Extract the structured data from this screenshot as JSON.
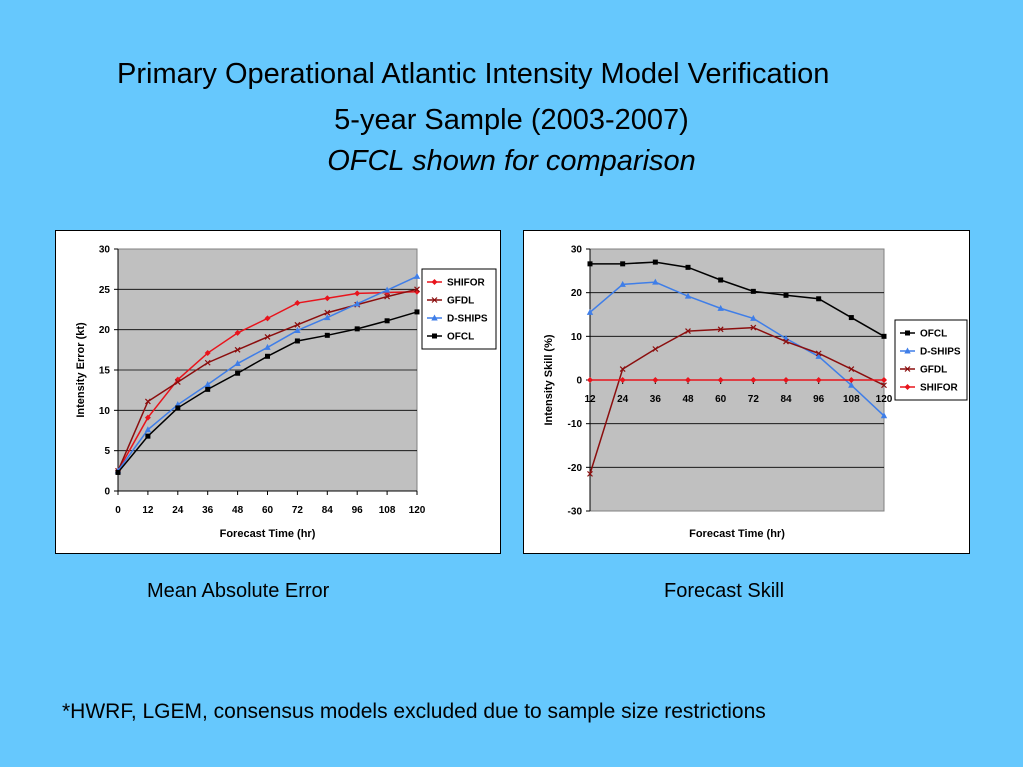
{
  "slide": {
    "title_line1": "Primary Operational Atlantic Intensity Model Verification",
    "title_line2": "5-year Sample (2003-2007)",
    "title_line3": "OFCL shown for comparison",
    "caption_left": "Mean Absolute Error",
    "caption_right": "Forecast Skill",
    "footnote": "*HWRF, LGEM, consensus models excluded due to sample size restrictions"
  },
  "chart_data": [
    {
      "type": "line",
      "xlabel": "Forecast Time (hr)",
      "ylabel": "Intensity Error (kt)",
      "x": [
        0,
        12,
        24,
        36,
        48,
        60,
        72,
        84,
        96,
        108,
        120
      ],
      "ylim": [
        0,
        30
      ],
      "yticks": [
        0,
        5,
        10,
        15,
        20,
        25,
        30
      ],
      "grid": true,
      "plot_background": "#c0c0c0",
      "legend_position": "right",
      "series": [
        {
          "name": "SHIFOR",
          "color": "#e8141c",
          "marker": "diamond",
          "values": [
            2.5,
            9.1,
            13.8,
            17.1,
            19.6,
            21.4,
            23.3,
            23.9,
            24.5,
            24.6,
            24.7
          ]
        },
        {
          "name": "GFDL",
          "color": "#8b0e0e",
          "marker": "x",
          "values": [
            2.5,
            11.1,
            13.5,
            15.9,
            17.5,
            19.1,
            20.6,
            22.1,
            23.1,
            24.1,
            25.0
          ]
        },
        {
          "name": "D-SHIPS",
          "color": "#3f7ee8",
          "marker": "triangle",
          "values": [
            2.5,
            7.6,
            10.7,
            13.2,
            15.8,
            17.8,
            19.9,
            21.5,
            23.2,
            24.9,
            26.6
          ]
        },
        {
          "name": "OFCL",
          "color": "#000000",
          "marker": "square",
          "values": [
            2.3,
            6.8,
            10.3,
            12.6,
            14.6,
            16.7,
            18.6,
            19.3,
            20.1,
            21.1,
            22.2
          ]
        }
      ]
    },
    {
      "type": "line",
      "xlabel": "Forecast Time (hr)",
      "ylabel": "Intensity Skill (%)",
      "x": [
        12,
        24,
        36,
        48,
        60,
        72,
        84,
        96,
        108,
        120
      ],
      "ylim": [
        -30,
        30
      ],
      "yticks": [
        -30,
        -20,
        -10,
        0,
        10,
        20,
        30
      ],
      "grid": true,
      "plot_background": "#c0c0c0",
      "legend_position": "right",
      "series": [
        {
          "name": "OFCL",
          "color": "#000000",
          "marker": "square",
          "values": [
            26.6,
            26.6,
            27.0,
            25.8,
            22.9,
            20.3,
            19.4,
            18.6,
            14.3,
            10.0
          ]
        },
        {
          "name": "D-SHIPS",
          "color": "#3f7ee8",
          "marker": "triangle",
          "values": [
            15.5,
            21.9,
            22.4,
            19.2,
            16.4,
            14.1,
            9.5,
            5.4,
            -1.2,
            -8.2
          ]
        },
        {
          "name": "GFDL",
          "color": "#8b0e0e",
          "marker": "x",
          "values": [
            -21.5,
            2.5,
            7.1,
            11.2,
            11.6,
            12.0,
            8.8,
            6.1,
            2.5,
            -1.2
          ]
        },
        {
          "name": "SHIFOR",
          "color": "#e8141c",
          "marker": "diamond",
          "values": [
            0,
            0,
            0,
            0,
            0,
            0,
            0,
            0,
            0,
            0
          ]
        }
      ]
    }
  ]
}
